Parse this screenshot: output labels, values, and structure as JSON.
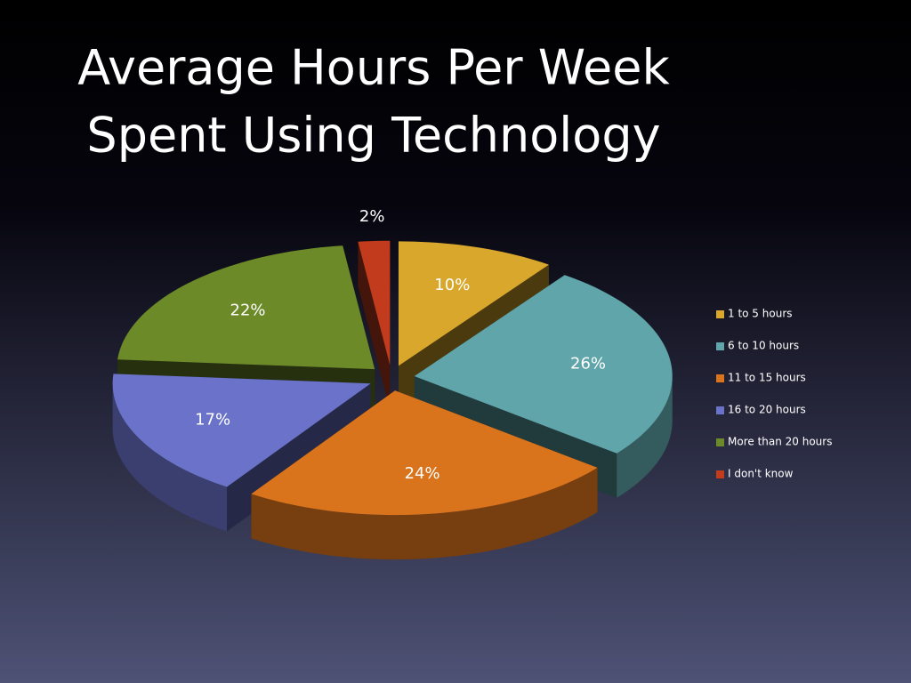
{
  "chart_data": {
    "type": "pie",
    "title": [
      "Average Hours Per Week",
      "Spent Using Technology"
    ],
    "categories": [
      "1 to 5 hours",
      "6 to 10 hours",
      "11 to 15 hours",
      "16 to 20 hours",
      "More than 20 hours",
      "I don't know"
    ],
    "values": [
      10,
      26,
      24,
      17,
      22,
      2
    ],
    "value_labels": [
      "10%",
      "26%",
      "24%",
      "17%",
      "22%",
      "2%"
    ],
    "colors": [
      "#d8a72c",
      "#5fa5aa",
      "#d9731c",
      "#6a73c9",
      "#6c8a28",
      "#c23b1c"
    ],
    "legend": "right"
  }
}
